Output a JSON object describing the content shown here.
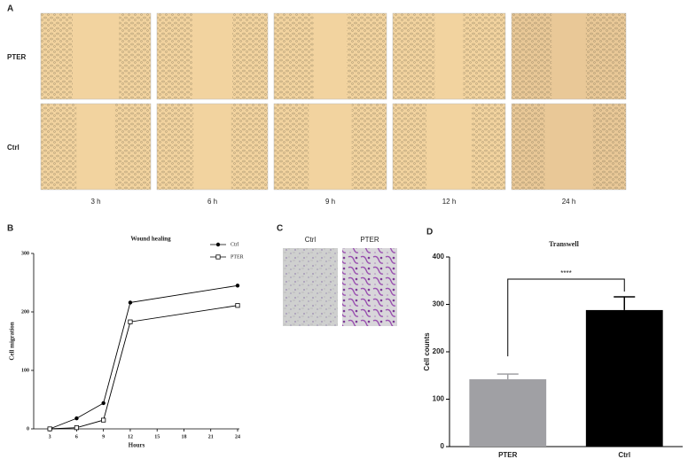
{
  "panel_a": {
    "label": "A",
    "rows": [
      "PTER",
      "Ctrl"
    ],
    "columns": [
      "3 h",
      "6 h",
      "9 h",
      "12 h",
      "24 h"
    ]
  },
  "panel_c": {
    "label": "C",
    "columns": [
      "Ctrl",
      "PTER"
    ]
  },
  "chart_data": [
    {
      "type": "line",
      "panel_label": "B",
      "title": "Wound healing",
      "x_label": "Hours",
      "y_label": "Cell migration",
      "x": [
        3,
        6,
        9,
        12,
        24
      ],
      "series": [
        {
          "name": "Ctrl",
          "color": "#000000",
          "marker": "circle",
          "values": [
            0,
            18,
            44,
            216,
            245
          ]
        },
        {
          "name": "PTER",
          "color": "#000000",
          "marker": "square",
          "values": [
            0,
            2,
            15,
            183,
            211
          ]
        }
      ],
      "xlim": [
        1.2,
        24.2
      ],
      "xticks": [
        3,
        6,
        9,
        12,
        15,
        18,
        21,
        24
      ],
      "ylim": [
        0,
        300
      ],
      "yticks": [
        0,
        100,
        200,
        300
      ],
      "legend": "top-right"
    },
    {
      "type": "bar",
      "panel_label": "D",
      "title": "Transwell",
      "y_label": "Cell counts",
      "categories": [
        "PTER",
        "Ctrl"
      ],
      "values": [
        142,
        288
      ],
      "errors": [
        11,
        28
      ],
      "colors": [
        "#a0a0a4",
        "#000000"
      ],
      "ylim": [
        0,
        400
      ],
      "yticks": [
        0,
        100,
        200,
        300,
        400
      ],
      "annotation": "****"
    }
  ]
}
